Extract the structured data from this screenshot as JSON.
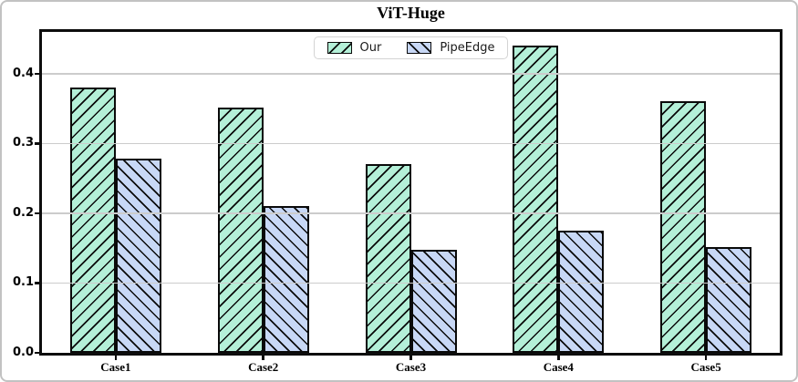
{
  "figure": {
    "title": "ViT-Huge"
  },
  "chart_data": {
    "type": "bar",
    "title": "ViT-Huge",
    "categories": [
      "Case1",
      "Case2",
      "Case3",
      "Case4",
      "Case5"
    ],
    "series": [
      {
        "name": "Our",
        "values": [
          0.38,
          0.351,
          0.271,
          0.44,
          0.361
        ],
        "fill": "#b4f0d8",
        "hatch": "/"
      },
      {
        "name": "PipeEdge",
        "values": [
          0.278,
          0.21,
          0.148,
          0.175,
          0.151
        ],
        "fill": "#c8d8f6",
        "hatch": "\\"
      }
    ],
    "xlabel": "",
    "ylabel": "",
    "ylim": [
      0,
      0.46
    ],
    "ytick_labels": [
      "0.0",
      "0.1",
      "0.2",
      "0.3",
      "0.4"
    ],
    "ytick_values": [
      0.0,
      0.1,
      0.2,
      0.3,
      0.4
    ],
    "grid": "horizontal gridlines drawn on top of bars",
    "legend_position": "top center inside plot",
    "colors": {
      "bar_edge": "#0a0a0a",
      "hatch_line": "#0a0a0a",
      "grid_line": "#cccccc",
      "spine": "#0d0d0d"
    }
  }
}
